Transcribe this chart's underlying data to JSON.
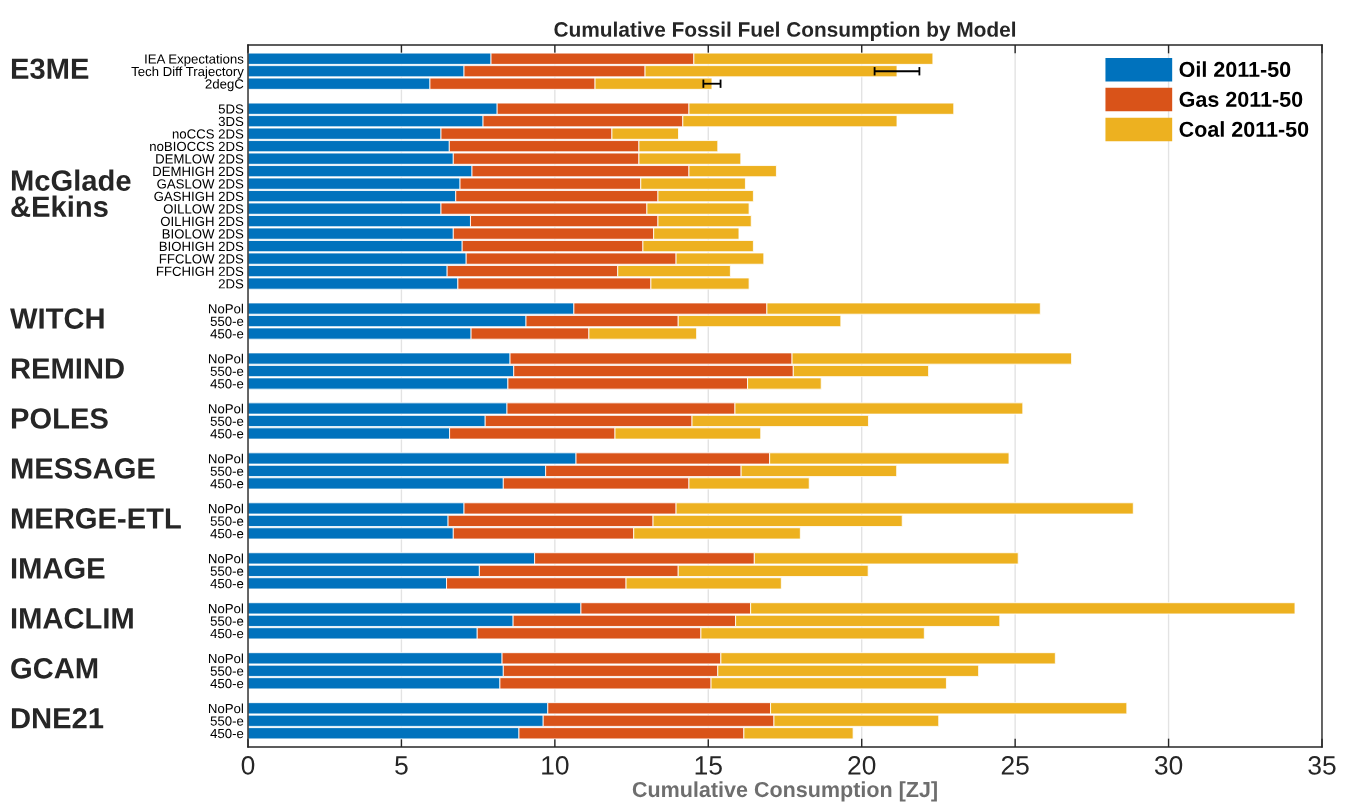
{
  "chart_data": {
    "type": "bar",
    "orientation": "horizontal",
    "stacked": true,
    "title": "Cumulative Fossil Fuel Consumption by Model",
    "xlabel": "Cumulative Consumption [ZJ]",
    "annotations": [
      "E3ME",
      "McGlade\n&Ekins",
      "WITCH",
      "REMIND",
      "POLES",
      "MESSAGE",
      "MERGE-ETL",
      "IMAGE",
      "IMACLIM",
      "GCAM",
      "DNE21"
    ],
    "categories": [
      "IEA Expectations",
      "Tech Diff Trajectory",
      "2degC",
      null,
      "5DS",
      "3DS",
      "noCCS 2DS",
      "noBIOCCS 2DS",
      "DEMLOW 2DS",
      "DEMHIGH 2DS",
      "GASLOW 2DS",
      "GASHIGH 2DS",
      "OILLOW 2DS",
      "OILHIGH 2DS",
      "BIOLOW 2DS",
      "BIOHIGH 2DS",
      "FFCLOW 2DS",
      "FFCHIGH 2DS",
      "2DS",
      null,
      "NoPol",
      "550-e",
      "450-e",
      null,
      "NoPol",
      "550-e",
      "450-e",
      null,
      "NoPol",
      "550-e",
      "450-e",
      null,
      "NoPol",
      "550-e",
      "450-e",
      null,
      "NoPol",
      "550-e",
      "450-e",
      null,
      "NoPol",
      "550-e",
      "450-e",
      null,
      "NoPol",
      "550-e",
      "450-e",
      null,
      "NoPol",
      "550-e",
      "450-e",
      null,
      "NoPol",
      "550-e",
      "450-e"
    ],
    "series": [
      {
        "name": "Oil 2011-50",
        "color": "#0072bd",
        "values": [
          7.92,
          7.04,
          5.93,
          null,
          8.12,
          7.66,
          6.29,
          6.56,
          6.69,
          7.3,
          6.91,
          6.77,
          6.29,
          7.25,
          6.69,
          6.98,
          7.11,
          6.49,
          6.84,
          null,
          10.62,
          9.06,
          7.27,
          null,
          8.54,
          8.66,
          8.47,
          null,
          8.44,
          7.73,
          6.57,
          null,
          10.69,
          9.7,
          8.32,
          null,
          7.04,
          6.52,
          6.69,
          null,
          9.34,
          7.54,
          6.47,
          null,
          10.85,
          8.64,
          7.47,
          null,
          8.28,
          8.32,
          8.21,
          null,
          9.77,
          9.62,
          8.83
        ]
      },
      {
        "name": "Gas 2011-50",
        "color": "#d95319",
        "values": [
          6.61,
          5.9,
          5.38,
          null,
          6.25,
          6.51,
          5.57,
          6.18,
          6.05,
          7.07,
          5.89,
          6.59,
          6.71,
          6.11,
          6.53,
          5.89,
          6.84,
          5.56,
          6.29,
          null,
          6.29,
          4.96,
          3.84,
          null,
          9.19,
          9.11,
          7.81,
          null,
          7.43,
          6.74,
          5.39,
          null,
          6.31,
          6.37,
          6.05,
          null,
          6.91,
          6.68,
          5.88,
          null,
          7.16,
          6.48,
          5.85,
          null,
          5.53,
          7.25,
          7.29,
          null,
          7.13,
          6.99,
          6.88,
          null,
          7.26,
          7.52,
          7.33
        ]
      },
      {
        "name": "Coal 2011-50",
        "color": "#edb120",
        "values": [
          7.79,
          8.21,
          3.81,
          null,
          8.63,
          6.98,
          2.17,
          2.57,
          3.32,
          2.85,
          3.41,
          3.11,
          3.33,
          3.04,
          2.78,
          3.6,
          2.86,
          3.67,
          3.2,
          null,
          8.91,
          5.3,
          3.51,
          null,
          9.11,
          4.41,
          2.4,
          null,
          9.38,
          5.75,
          4.75,
          null,
          7.8,
          5.07,
          3.92,
          null,
          14.9,
          8.12,
          5.43,
          null,
          8.6,
          6.19,
          5.06,
          null,
          17.74,
          8.61,
          7.28,
          null,
          10.9,
          8.5,
          7.67,
          null,
          11.61,
          5.37,
          3.56
        ],
        "errors": [
          null,
          0.73,
          0.28,
          null,
          null,
          null,
          null,
          null,
          null,
          null,
          null,
          null,
          null,
          null,
          null,
          null,
          null,
          null,
          null,
          null,
          null,
          null,
          null,
          null,
          null,
          null,
          null,
          null,
          null,
          null,
          null,
          null,
          null,
          null,
          null,
          null,
          null,
          null,
          null,
          null,
          null,
          null,
          null,
          null,
          null,
          null,
          null,
          null,
          null,
          null,
          null,
          null,
          null,
          null,
          null
        ]
      }
    ],
    "xlim": [
      0,
      35
    ],
    "xticks": [
      0,
      5,
      10,
      15,
      20,
      25,
      30,
      35
    ],
    "grid": "x",
    "legend": "top right"
  }
}
